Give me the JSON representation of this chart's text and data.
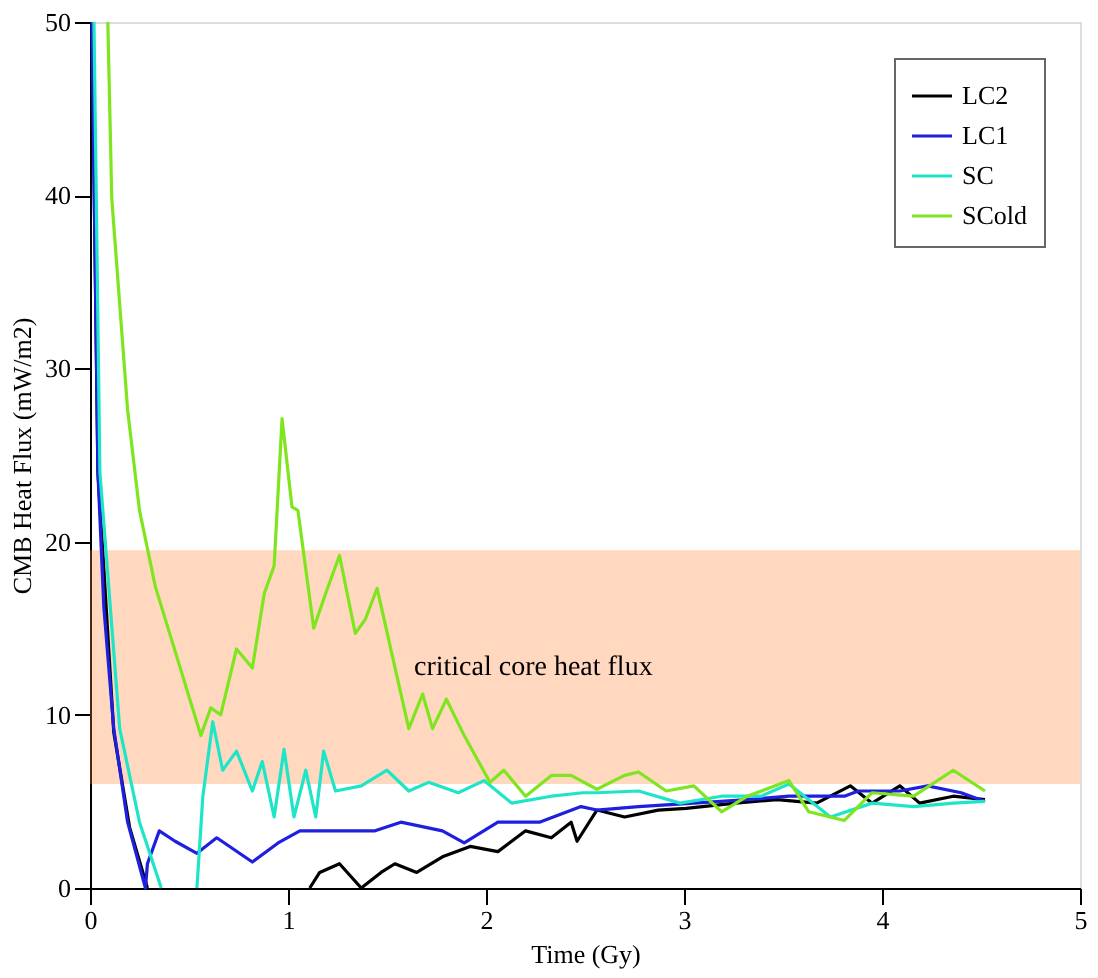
{
  "chart_data": {
    "type": "line",
    "xlabel": "Time (Gy)",
    "ylabel": "CMB Heat Flux (mW/m2)",
    "xlim": [
      0,
      5
    ],
    "xticks": [
      0,
      1,
      2,
      3,
      4,
      5
    ],
    "ylim": [
      0,
      50
    ],
    "yticks": [
      0,
      10,
      20,
      30,
      40,
      50
    ],
    "grid": false,
    "legend": "top right",
    "marker": "none",
    "line_style": "solid",
    "bands": [
      {
        "axis": "y",
        "from": 6,
        "to": 19.5,
        "label": "critical core heat flux",
        "color": "#ff7f2a"
      }
    ],
    "series": [
      {
        "name": "LC2",
        "color": "#000000",
        "x": [
          0.01,
          0.04,
          0.12,
          0.2,
          0.29,
          0.7,
          1.11,
          1.16,
          1.26,
          1.37,
          1.47,
          1.54,
          1.65,
          1.78,
          1.92,
          2.06,
          2.2,
          2.33,
          2.43,
          2.46,
          2.56,
          2.7,
          2.87,
          3.01,
          3.26,
          3.47,
          3.67,
          3.84,
          3.95,
          4.09,
          4.19,
          4.36,
          4.52
        ],
        "values": [
          50,
          24,
          9,
          3.5,
          0,
          null,
          0,
          0.9,
          1.4,
          0,
          0.9,
          1.4,
          0.9,
          1.8,
          2.4,
          2.1,
          3.3,
          2.9,
          3.8,
          2.7,
          4.5,
          4.1,
          4.5,
          4.6,
          4.9,
          5.1,
          4.9,
          5.9,
          4.9,
          5.9,
          4.9,
          5.3,
          5.1
        ]
      },
      {
        "name": "LC1",
        "color": "#1f1fdf",
        "x": [
          0.01,
          0.04,
          0.07,
          0.12,
          0.19,
          0.28,
          0.29,
          0.35,
          0.43,
          0.54,
          0.64,
          0.82,
          0.95,
          1.06,
          1.29,
          1.44,
          1.57,
          1.78,
          1.89,
          2.06,
          2.27,
          2.48,
          2.56,
          2.77,
          3.05,
          3.32,
          3.53,
          3.81,
          3.88,
          4.09,
          4.23,
          4.4,
          4.52
        ],
        "values": [
          50,
          24,
          16.2,
          9.2,
          3.8,
          0,
          1.4,
          3.3,
          2.7,
          2.0,
          2.9,
          1.5,
          2.6,
          3.3,
          3.3,
          3.3,
          3.8,
          3.3,
          2.6,
          3.8,
          3.8,
          4.7,
          4.5,
          4.7,
          4.9,
          5.1,
          5.3,
          5.3,
          5.6,
          5.6,
          5.9,
          5.5,
          5.0
        ]
      },
      {
        "name": "SC",
        "color": "#1fe5c8",
        "x": [
          0.02,
          0.05,
          0.15,
          0.25,
          0.36,
          0.45,
          0.54,
          0.57,
          0.62,
          0.67,
          0.74,
          0.82,
          0.87,
          0.93,
          0.98,
          1.03,
          1.09,
          1.14,
          1.18,
          1.24,
          1.37,
          1.5,
          1.61,
          1.71,
          1.86,
          1.99,
          2.13,
          2.33,
          2.49,
          2.56,
          2.77,
          2.98,
          3.19,
          3.39,
          3.53,
          3.74,
          3.95,
          4.16,
          4.36,
          4.52
        ],
        "values": [
          50,
          24,
          9.2,
          3.8,
          0,
          null,
          0,
          5.3,
          9.6,
          6.8,
          7.9,
          5.6,
          7.3,
          4.1,
          8.0,
          4.1,
          6.8,
          4.1,
          7.9,
          5.6,
          5.9,
          6.8,
          5.6,
          6.1,
          5.5,
          6.2,
          4.9,
          5.3,
          5.5,
          5.5,
          5.6,
          4.9,
          5.3,
          5.3,
          6.0,
          4.1,
          4.9,
          4.7,
          4.9,
          5.0
        ]
      },
      {
        "name": "SCold",
        "color": "#7fe51f",
        "x": [
          0.09,
          0.11,
          0.19,
          0.25,
          0.33,
          0.56,
          0.61,
          0.66,
          0.74,
          0.82,
          0.88,
          0.93,
          0.97,
          1.02,
          1.05,
          1.13,
          1.19,
          1.26,
          1.34,
          1.39,
          1.45,
          1.61,
          1.68,
          1.73,
          1.8,
          1.89,
          2.02,
          2.09,
          2.2,
          2.33,
          2.43,
          2.56,
          2.7,
          2.77,
          2.91,
          3.05,
          3.19,
          3.32,
          3.53,
          3.63,
          3.81,
          3.95,
          4.16,
          4.36,
          4.52
        ],
        "values": [
          50,
          39.8,
          27.6,
          21.8,
          17.4,
          8.8,
          10.4,
          10,
          13.8,
          12.7,
          17,
          18.6,
          27.1,
          22,
          21.8,
          15,
          17,
          19.2,
          14.7,
          15.5,
          17.3,
          9.2,
          11.2,
          9.2,
          10.9,
          8.8,
          6.1,
          6.8,
          5.3,
          6.5,
          6.5,
          5.7,
          6.5,
          6.7,
          5.6,
          5.9,
          4.4,
          5.3,
          6.2,
          4.4,
          3.9,
          5.5,
          5.3,
          6.8,
          5.6
        ]
      }
    ]
  }
}
